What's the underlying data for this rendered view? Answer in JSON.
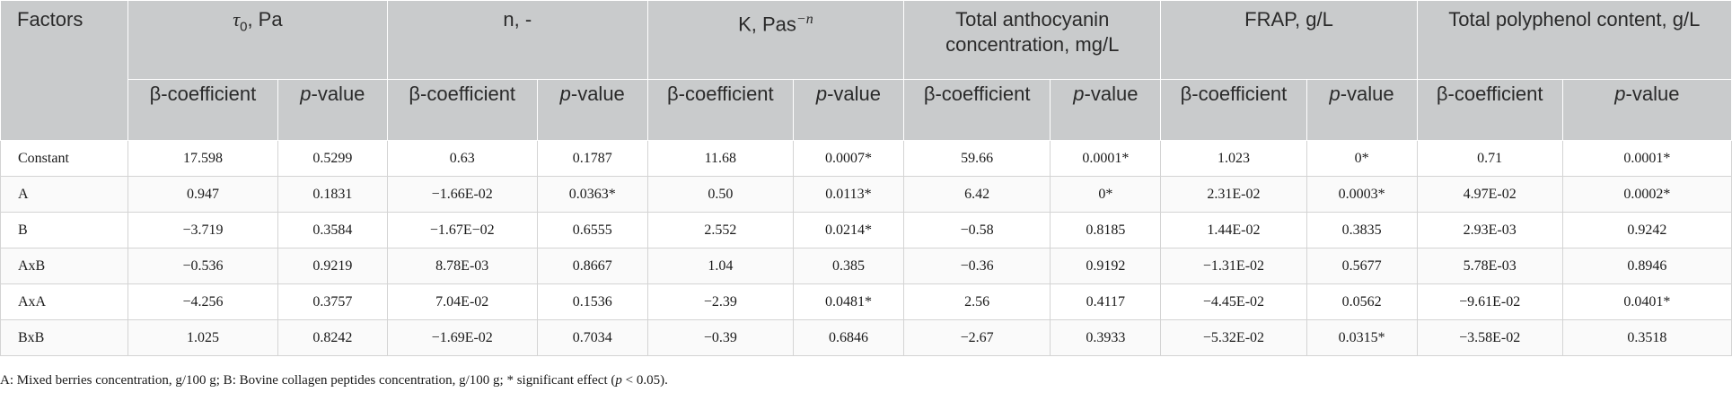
{
  "headers": {
    "factors": "Factors",
    "groups": [
      {
        "symbol": "τ",
        "sub": "0",
        "rest": ", Pa"
      },
      {
        "text": "n, -"
      },
      {
        "text": "K, Pas",
        "sup": "−n"
      },
      {
        "text": "Total anthocyanin concentration, mg/L"
      },
      {
        "text": "FRAP, g/L"
      },
      {
        "text": "Total polyphenol content, g/L"
      }
    ],
    "beta": "β-coefficient",
    "p_italic": "p",
    "p_rest": "-value"
  },
  "rows": [
    {
      "factor": "Constant",
      "cells": [
        "17.598",
        "0.5299",
        "0.63",
        "0.1787",
        "11.68",
        "0.0007*",
        "59.66",
        "0.0001*",
        "1.023",
        "0*",
        "0.71",
        "0.0001*"
      ]
    },
    {
      "factor": "A",
      "cells": [
        "0.947",
        "0.1831",
        "−1.66E-02",
        "0.0363*",
        "0.50",
        "0.0113*",
        "6.42",
        "0*",
        "2.31E-02",
        "0.0003*",
        "4.97E-02",
        "0.0002*"
      ]
    },
    {
      "factor": "B",
      "cells": [
        "−3.719",
        "0.3584",
        "−1.67E−02",
        "0.6555",
        "2.552",
        "0.0214*",
        "−0.58",
        "0.8185",
        "1.44E-02",
        "0.3835",
        "2.93E-03",
        "0.9242"
      ]
    },
    {
      "factor": "AxB",
      "cells": [
        "−0.536",
        "0.9219",
        "8.78E-03",
        "0.8667",
        "1.04",
        "0.385",
        "−0.36",
        "0.9192",
        "−1.31E-02",
        "0.5677",
        "5.78E-03",
        "0.8946"
      ]
    },
    {
      "factor": "AxA",
      "cells": [
        "−4.256",
        "0.3757",
        "7.04E-02",
        "0.1536",
        "−2.39",
        "0.0481*",
        "2.56",
        "0.4117",
        "−4.45E-02",
        "0.0562",
        "−9.61E-02",
        "0.0401*"
      ]
    },
    {
      "factor": "BxB",
      "cells": [
        "1.025",
        "0.8242",
        "−1.69E-02",
        "0.7034",
        "−0.39",
        "0.6846",
        "−2.67",
        "0.3933",
        "−5.32E-02",
        "0.0315*",
        "−3.58E-02",
        "0.3518"
      ]
    }
  ],
  "footnote": {
    "main": "A: Mixed berries concentration, g/100 g; B: Bovine collagen peptides concentration, g/100 g; * significant effect (",
    "p": "p",
    "rest": " < 0.05)."
  }
}
